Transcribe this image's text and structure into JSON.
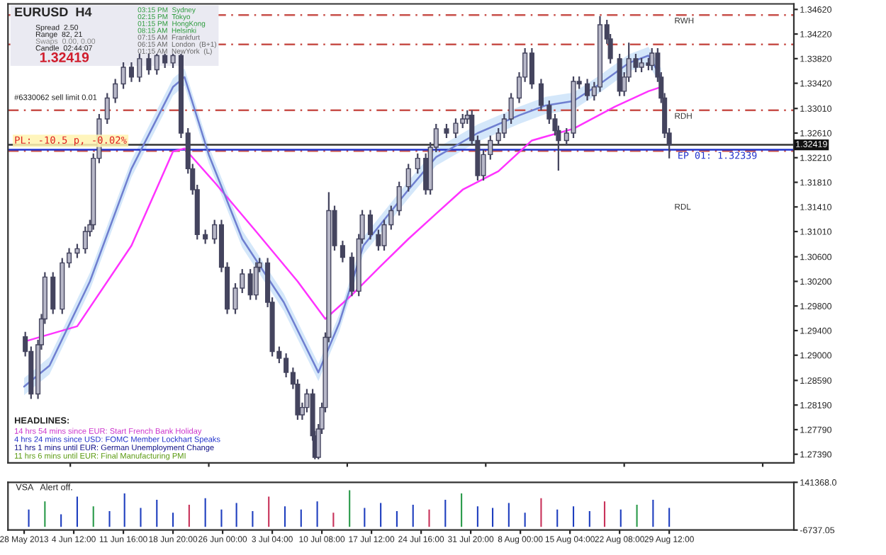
{
  "chart_data": [
    {
      "type": "candlestick",
      "title": "EURUSD  H4",
      "color": "#44445e",
      "x": [
        "2013-05-28T12:00",
        "2013-05-29T08:00",
        "2013-05-30T08:00",
        "2013-05-30T20:00",
        "2013-05-31T08:00",
        "2013-06-01T12:00",
        "2013-06-02T20:00",
        "2013-06-03T20:00",
        "2013-06-05T00:00",
        "2013-06-06T04:00",
        "2013-06-06T20:00",
        "2013-06-07T08:00",
        "2013-06-08T04:00",
        "2013-06-09T08:00",
        "2013-06-10T12:00",
        "2013-06-11T16:00",
        "2013-06-12T20:00",
        "2013-06-14T00:00",
        "2013-06-15T08:00",
        "2013-06-16T12:00",
        "2013-06-17T16:00",
        "2013-06-18T20:00",
        "2013-06-20T00:00",
        "2013-06-21T00:00",
        "2013-06-21T16:00",
        "2013-06-22T08:00",
        "2013-06-23T12:00",
        "2013-06-24T20:00",
        "2013-06-25T20:00",
        "2013-06-26T16:00",
        "2013-06-27T20:00",
        "2013-06-28T20:00",
        "2013-06-30T00:00",
        "2013-06-30T20:00",
        "2013-07-01T08:00",
        "2013-07-02T12:00",
        "2013-07-03T04:00",
        "2013-07-04T04:00",
        "2013-07-05T04:00",
        "2013-07-06T04:00",
        "2013-07-06T20:00",
        "2013-07-07T12:00",
        "2013-07-08T04:00",
        "2013-07-09T00:00",
        "2013-07-09T08:00",
        "2013-07-09T20:00",
        "2013-07-10T08:00",
        "2013-07-10T20:00",
        "2013-07-11T08:00",
        "2013-07-12T04:00",
        "2013-07-13T08:00",
        "2013-07-14T16:00",
        "2013-07-15T16:00",
        "2013-07-16T04:00",
        "2013-07-17T08:00",
        "2013-07-18T12:00",
        "2013-07-19T08:00",
        "2013-07-20T08:00",
        "2013-07-21T12:00",
        "2013-07-22T20:00",
        "2013-07-24T04:00",
        "2013-07-25T08:00",
        "2013-07-26T00:00",
        "2013-07-26T20:00",
        "2013-07-28T08:00",
        "2013-07-29T16:00",
        "2013-07-30T16:00",
        "2013-07-31T08:00",
        "2013-08-01T00:00",
        "2013-08-01T20:00",
        "2013-08-02T16:00",
        "2013-08-03T16:00",
        "2013-08-04T20:00",
        "2013-08-05T16:00",
        "2013-08-06T16:00",
        "2013-08-07T20:00",
        "2013-08-08T16:00",
        "2013-08-09T16:00",
        "2013-08-11T00:00",
        "2013-08-12T04:00",
        "2013-08-13T00:00",
        "2013-08-13T12:00",
        "2013-08-14T16:00",
        "2013-08-15T16:00",
        "2013-08-16T12:00",
        "2013-08-17T16:00",
        "2013-08-18T16:00",
        "2013-08-19T12:00",
        "2013-08-20T12:00",
        "2013-08-21T00:00",
        "2013-08-22T08:00",
        "2013-08-23T00:00",
        "2013-08-23T16:00",
        "2013-08-24T16:00",
        "2013-08-25T12:00",
        "2013-08-26T12:00",
        "2013-08-27T00:00",
        "2013-08-27T20:00",
        "2013-08-28T08:00",
        "2013-08-28T20:00",
        "2013-08-29T12:00"
      ],
      "ohlc": [
        [
          1.293,
          1.2938,
          1.2898,
          1.2906
        ],
        [
          1.2906,
          1.2914,
          1.2829,
          1.2837
        ],
        [
          1.2837,
          1.2925,
          1.2829,
          1.2917
        ],
        [
          1.2917,
          1.2967,
          1.2909,
          1.2959
        ],
        [
          1.2959,
          1.3035,
          1.2951,
          1.3027
        ],
        [
          1.3027,
          1.3035,
          1.2967,
          1.2975
        ],
        [
          1.2975,
          1.3058,
          1.2967,
          1.305
        ],
        [
          1.305,
          1.3074,
          1.3042,
          1.3066
        ],
        [
          1.3066,
          1.3081,
          1.3058,
          1.3073
        ],
        [
          1.3073,
          1.3109,
          1.3065,
          1.3101
        ],
        [
          1.3101,
          1.312,
          1.3093,
          1.3112
        ],
        [
          1.3112,
          1.3228,
          1.3104,
          1.322
        ],
        [
          1.322,
          1.3292,
          1.3212,
          1.3284
        ],
        [
          1.3284,
          1.3326,
          1.3276,
          1.3318
        ],
        [
          1.3318,
          1.3349,
          1.331,
          1.3341
        ],
        [
          1.3341,
          1.3376,
          1.3333,
          1.3368
        ],
        [
          1.3368,
          1.3376,
          1.3344,
          1.3352
        ],
        [
          1.3352,
          1.339,
          1.3344,
          1.3382
        ],
        [
          1.3382,
          1.339,
          1.3356,
          1.3364
        ],
        [
          1.3364,
          1.339,
          1.3356,
          1.3387
        ],
        [
          1.3387,
          1.339,
          1.3367,
          1.3375
        ],
        [
          1.3375,
          1.339,
          1.3367,
          1.3387
        ],
        [
          1.3387,
          1.339,
          1.3253,
          1.3261
        ],
        [
          1.3261,
          1.3269,
          1.3195,
          1.3203
        ],
        [
          1.3203,
          1.3211,
          1.3161,
          1.3169
        ],
        [
          1.3169,
          1.3177,
          1.3088,
          1.3096
        ],
        [
          1.3096,
          1.3104,
          1.3081,
          1.3089
        ],
        [
          1.3089,
          1.312,
          1.3081,
          1.3112
        ],
        [
          1.3112,
          1.312,
          1.3035,
          1.3043
        ],
        [
          1.3043,
          1.3051,
          1.2967,
          1.2975
        ],
        [
          1.2975,
          1.3017,
          1.2967,
          1.3009
        ],
        [
          1.3009,
          1.304,
          1.3001,
          1.3032
        ],
        [
          1.3032,
          1.304,
          1.299,
          1.2998
        ],
        [
          1.2998,
          1.3051,
          1.299,
          1.3043
        ],
        [
          1.3043,
          1.3058,
          1.3035,
          1.305
        ],
        [
          1.305,
          1.3058,
          1.2978,
          1.2986
        ],
        [
          1.2986,
          1.2994,
          1.2898,
          1.2906
        ],
        [
          1.2906,
          1.2914,
          1.2887,
          1.2895
        ],
        [
          1.2895,
          1.2903,
          1.2864,
          1.2872
        ],
        [
          1.2872,
          1.288,
          1.2845,
          1.2853
        ],
        [
          1.2853,
          1.2861,
          1.2795,
          1.2803
        ],
        [
          1.2803,
          1.2823,
          1.2795,
          1.2815
        ],
        [
          1.2815,
          1.2845,
          1.2807,
          1.2837
        ],
        [
          1.2837,
          1.2845,
          1.2761,
          1.2769
        ],
        [
          1.2769,
          1.2777,
          1.2731,
          1.2734
        ],
        [
          1.2734,
          1.2788,
          1.2731,
          1.278
        ],
        [
          1.278,
          1.2823,
          1.2772,
          1.2815
        ],
        [
          1.2815,
          1.2937,
          1.2807,
          1.2929
        ],
        [
          1.2929,
          1.3165,
          1.2921,
          1.3135
        ],
        [
          1.3135,
          1.3143,
          1.307,
          1.3078
        ],
        [
          1.3078,
          1.3086,
          1.3051,
          1.3059
        ],
        [
          1.3059,
          1.3067,
          1.2996,
          1.3004
        ],
        [
          1.3004,
          1.3097,
          1.2996,
          1.3089
        ],
        [
          1.3089,
          1.3136,
          1.3081,
          1.3128
        ],
        [
          1.3128,
          1.3136,
          1.3088,
          1.3096
        ],
        [
          1.3096,
          1.3104,
          1.307,
          1.3078
        ],
        [
          1.3078,
          1.312,
          1.307,
          1.3112
        ],
        [
          1.3112,
          1.3143,
          1.3104,
          1.3135
        ],
        [
          1.3135,
          1.3182,
          1.3127,
          1.3174
        ],
        [
          1.3174,
          1.3211,
          1.3166,
          1.3203
        ],
        [
          1.3203,
          1.3228,
          1.3195,
          1.322
        ],
        [
          1.322,
          1.3228,
          1.3161,
          1.3169
        ],
        [
          1.3169,
          1.3246,
          1.3161,
          1.3238
        ],
        [
          1.3238,
          1.3276,
          1.323,
          1.3268
        ],
        [
          1.3268,
          1.3276,
          1.3253,
          1.3261
        ],
        [
          1.3261,
          1.3285,
          1.3253,
          1.3277
        ],
        [
          1.3277,
          1.3292,
          1.3269,
          1.3284
        ],
        [
          1.3284,
          1.3298,
          1.3276,
          1.329
        ],
        [
          1.329,
          1.3298,
          1.3241,
          1.3249
        ],
        [
          1.3249,
          1.3257,
          1.3184,
          1.3192
        ],
        [
          1.3192,
          1.3234,
          1.3184,
          1.3226
        ],
        [
          1.3226,
          1.3257,
          1.3218,
          1.3249
        ],
        [
          1.3249,
          1.3269,
          1.3241,
          1.3261
        ],
        [
          1.3261,
          1.3292,
          1.3253,
          1.3284
        ],
        [
          1.3284,
          1.3326,
          1.3276,
          1.3318
        ],
        [
          1.3318,
          1.336,
          1.331,
          1.3352
        ],
        [
          1.3352,
          1.3399,
          1.3344,
          1.3391
        ],
        [
          1.3391,
          1.3399,
          1.3333,
          1.3341
        ],
        [
          1.3341,
          1.3349,
          1.3298,
          1.3306
        ],
        [
          1.3306,
          1.3314,
          1.3276,
          1.3284
        ],
        [
          1.3284,
          1.3292,
          1.3257,
          1.3265
        ],
        [
          1.3265,
          1.3273,
          1.32,
          1.3249
        ],
        [
          1.3249,
          1.3269,
          1.3241,
          1.3261
        ],
        [
          1.3261,
          1.3353,
          1.3253,
          1.3345
        ],
        [
          1.3345,
          1.3353,
          1.3333,
          1.3341
        ],
        [
          1.3341,
          1.3349,
          1.3314,
          1.3322
        ],
        [
          1.3322,
          1.3344,
          1.3314,
          1.3336
        ],
        [
          1.3336,
          1.3451,
          1.3328,
          1.3437
        ],
        [
          1.3437,
          1.3445,
          1.3406,
          1.3414
        ],
        [
          1.3414,
          1.3422,
          1.3374,
          1.3382
        ],
        [
          1.3382,
          1.339,
          1.3321,
          1.3329
        ],
        [
          1.3329,
          1.336,
          1.3321,
          1.3352
        ],
        [
          1.3352,
          1.3408,
          1.3344,
          1.3382
        ],
        [
          1.3382,
          1.339,
          1.336,
          1.3368
        ],
        [
          1.3368,
          1.3383,
          1.336,
          1.3375
        ],
        [
          1.3375,
          1.3383,
          1.3363,
          1.3371
        ],
        [
          1.3371,
          1.3399,
          1.3363,
          1.3391
        ],
        [
          1.3391,
          1.3399,
          1.3344,
          1.3352
        ],
        [
          1.3352,
          1.336,
          1.331,
          1.3318
        ],
        [
          1.3318,
          1.3326,
          1.3253,
          1.3261
        ],
        [
          1.3261,
          1.3269,
          1.322,
          1.3242
        ]
      ],
      "series": [
        {
          "type": "line",
          "color": "#ff33ff",
          "x": [
            "2013-05-28T08:00",
            "2013-06-05T00:00",
            "2013-06-12T20:00",
            "2013-06-18T20:00",
            "2013-06-20T12:00",
            "2013-06-24T20:00",
            "2013-06-30T20:00",
            "2013-07-06T20:00",
            "2013-07-10T20:00",
            "2013-07-14T16:00",
            "2013-07-18T16:00",
            "2013-07-22T20:00",
            "2013-07-26T20:00",
            "2013-07-30T16:00",
            "2013-08-04T20:00",
            "2013-08-09T16:00",
            "2013-08-15T16:00",
            "2013-08-21T16:00",
            "2013-08-26T12:00",
            "2013-08-28T08:00"
          ],
          "values": [
            1.2922,
            1.2947,
            1.3078,
            1.3231,
            1.3236,
            1.3181,
            1.3101,
            1.302,
            1.2959,
            1.2998,
            1.3043,
            1.3089,
            1.313,
            1.3169,
            1.3199,
            1.3249,
            1.3268,
            1.3304,
            1.3329,
            1.3336
          ]
        },
        {
          "type": "line",
          "color": "#6f7fd0",
          "x": [
            "2013-05-28T08:00",
            "2013-06-01T00:00",
            "2013-06-06T20:00",
            "2013-06-12T20:00",
            "2013-06-18T20:00",
            "2013-06-20T12:00",
            "2013-06-24T00:00",
            "2013-06-28T20:00",
            "2013-07-04T20:00",
            "2013-07-09T20:00",
            "2013-07-12T20:00",
            "2013-07-16T08:00",
            "2013-07-22T20:00",
            "2013-07-26T20:00",
            "2013-08-01T20:00",
            "2013-08-07T20:00",
            "2013-08-11T16:00",
            "2013-08-15T16:00",
            "2013-08-19T12:00",
            "2013-08-23T16:00",
            "2013-08-26T12:00",
            "2013-08-28T08:00"
          ],
          "values": [
            1.2849,
            1.2883,
            1.302,
            1.3203,
            1.3336,
            1.3352,
            1.3226,
            1.3089,
            1.2986,
            1.2872,
            1.2952,
            1.3078,
            1.3169,
            1.3222,
            1.3261,
            1.329,
            1.3306,
            1.3313,
            1.3341,
            1.3375,
            1.3387,
            1.3352
          ],
          "lower": [
            1.2835,
            1.2869,
            1.3006,
            1.3189,
            1.3322,
            1.3338,
            1.3212,
            1.3075,
            1.2972,
            1.2858,
            1.2938,
            1.3064,
            1.3155,
            1.3208,
            1.3247,
            1.3276,
            1.3292,
            1.3299,
            1.3327,
            1.3361,
            1.3373,
            1.3338
          ],
          "upper": [
            1.2863,
            1.2897,
            1.3034,
            1.3217,
            1.335,
            1.3366,
            1.324,
            1.3103,
            1.3,
            1.2886,
            1.2966,
            1.3092,
            1.3183,
            1.3236,
            1.3275,
            1.3304,
            1.332,
            1.3327,
            1.3355,
            1.3389,
            1.3401,
            1.3366
          ]
        }
      ],
      "xlim": [
        "2013-05-26T00:00",
        "2013-09-16T12:00"
      ],
      "ylim": [
        1.2725,
        1.3471
      ],
      "yticks": [
        {
          "value": 1.3462,
          "label": "1.34620"
        },
        {
          "value": 1.3422,
          "label": "1.34220"
        },
        {
          "value": 1.3382,
          "label": "1.33820"
        },
        {
          "value": 1.3342,
          "label": "1.33420"
        },
        {
          "value": 1.3301,
          "label": "1.33010"
        },
        {
          "value": 1.3261,
          "label": "1.32610"
        },
        {
          "value": 1.3221,
          "label": "1.32210"
        },
        {
          "value": 1.3181,
          "label": "1.31810"
        },
        {
          "value": 1.3141,
          "label": "1.31410"
        },
        {
          "value": 1.3101,
          "label": "1.31010"
        },
        {
          "value": 1.306,
          "label": "1.30600"
        },
        {
          "value": 1.302,
          "label": "1.30200"
        },
        {
          "value": 1.298,
          "label": "1.29800"
        },
        {
          "value": 1.294,
          "label": "1.29400"
        },
        {
          "value": 1.29,
          "label": "1.29000"
        },
        {
          "value": 1.2859,
          "label": "1.28590"
        },
        {
          "value": 1.2819,
          "label": "1.28190"
        },
        {
          "value": 1.2779,
          "label": "1.27790"
        },
        {
          "value": 1.2739,
          "label": "1.27390"
        }
      ],
      "tick_labels": "y",
      "ref_lines": [
        {
          "axis": "y",
          "value": 1.3453,
          "label": "RWH",
          "color": "#c8504a",
          "line_style": "dashed"
        },
        {
          "axis": "y",
          "value": 1.3405,
          "label": null,
          "color": "#c8504a",
          "line_style": "dashed"
        },
        {
          "axis": "y",
          "value": 1.3298,
          "label": "RDH",
          "color": "#c8504a",
          "line_style": "dashed"
        },
        {
          "axis": "y",
          "value": 1.3232,
          "label": null,
          "color": "#c8504a",
          "line_style": "dashed"
        },
        {
          "axis": "y",
          "value": 1.32339,
          "label": "EP 01: 1.32339",
          "color": "#2233cc",
          "line_style": "solid"
        },
        {
          "axis": "y",
          "value": 1.32419,
          "label": "1.32419",
          "color": "#333333",
          "line_style": "solid"
        }
      ],
      "annotations": [
        "Spread  2.50",
        "Range  82, 21",
        "Swaps  0.00, 0.00",
        "Candle  02:44:07",
        "1.32419",
        "03:15 PM  Sydney",
        "02:15 PM  Tokyo",
        "01:15 PM  HongKong",
        "08:15 AM  Helsinki",
        "07:15 AM  Frankfurt",
        "06:15 AM  London  (B+1)",
        "01:15 AM  NewYork  (L)",
        "#6330062 sell limit 0.01",
        "PL: -10.5 p, -0.02%",
        "HEADLINES:",
        "14 hrs 54 mins since EUR: Start French Bank Holiday",
        "4 hrs 24 mins since USD: FOMC Member Lockhart Speaks",
        "11 hrs 1 mins until EUR: German Unemployment Change",
        "11 hrs 6 mins until EUR: Final Manufacturing PMI",
        "RDL"
      ]
    },
    {
      "type": "bar",
      "x": [
        "2013-05-29T00:00",
        "2013-05-31T08:00",
        "2013-06-02T16:00",
        "2013-06-05T00:00",
        "2013-06-07T08:00",
        "2013-06-09T16:00",
        "2013-06-11T20:00",
        "2013-06-14T04:00",
        "2013-06-16T12:00",
        "2013-06-18T20:00",
        "2013-06-21T04:00",
        "2013-06-23T12:00",
        "2013-06-25T20:00",
        "2013-06-28T00:00",
        "2013-06-30T08:00",
        "2013-07-02T16:00",
        "2013-07-05T00:00",
        "2013-07-07T08:00",
        "2013-07-09T16:00",
        "2013-07-12T00:00",
        "2013-07-14T08:00",
        "2013-07-16T12:00",
        "2013-07-18T20:00",
        "2013-07-21T04:00",
        "2013-07-23T12:00",
        "2013-07-25T20:00",
        "2013-07-28T04:00",
        "2013-07-30T12:00",
        "2013-08-01T20:00",
        "2013-08-04T00:00",
        "2013-08-06T08:00",
        "2013-08-08T16:00",
        "2013-08-11T00:00",
        "2013-08-13T08:00",
        "2013-08-15T16:00",
        "2013-08-18T00:00",
        "2013-08-20T04:00",
        "2013-08-22T12:00",
        "2013-08-24T20:00",
        "2013-08-27T04:00",
        "2013-08-29T12:00"
      ],
      "values": [
        60000,
        85000,
        45000,
        100000,
        70000,
        55000,
        110000,
        65000,
        90000,
        50000,
        75000,
        95000,
        60000,
        80000,
        55000,
        100000,
        70000,
        60000,
        85000,
        50000,
        120000,
        65000,
        80000,
        55000,
        75000,
        60000,
        90000,
        110000,
        70000,
        65000,
        80000,
        50000,
        95000,
        60000,
        70000,
        55000,
        85000,
        60000,
        75000,
        90000,
        65000
      ],
      "colors": [
        "#1f3fbf",
        "#2a9a4a",
        "#1f3fbf",
        "#1f3fbf",
        "#2a9a4a",
        "#1f3fbf",
        "#1f3fbf",
        "#1f3fbf",
        "#1f3fbf",
        "#1f3fbf",
        "#c8325a",
        "#1f3fbf",
        "#1f3fbf",
        "#1f3fbf",
        "#1f3fbf",
        "#c8325a",
        "#1f3fbf",
        "#1f3fbf",
        "#1f3fbf",
        "#c8325a",
        "#2a9a4a",
        "#1f3fbf",
        "#1f3fbf",
        "#1f3fbf",
        "#1f3fbf",
        "#c8325a",
        "#1f3fbf",
        "#2a9a4a",
        "#1f3fbf",
        "#1f3fbf",
        "#1f3fbf",
        "#1f3fbf",
        "#c8325a",
        "#1f3fbf",
        "#1f3fbf",
        "#1f3fbf",
        "#c8325a",
        "#1f3fbf",
        "#2a9a4a",
        "#1f3fbf",
        "#1f3fbf"
      ],
      "xlim": [
        "2013-05-26T00:00",
        "2013-09-16T12:00"
      ],
      "ylim": [
        -6737.05,
        141368.0
      ],
      "yticks": [
        {
          "value": 141368.0,
          "label": "141368.0"
        },
        {
          "value": -6737.05,
          "label": "-6737.05"
        }
      ],
      "xticks": [
        {
          "value": "2013-05-28T08:00",
          "label": "28 May 2013"
        },
        {
          "value": "2013-06-04T12:00",
          "label": "4 Jun 12:00"
        },
        {
          "value": "2013-06-11T16:00",
          "label": "11 Jun 16:00"
        },
        {
          "value": "2013-06-18T20:00",
          "label": "18 Jun 20:00"
        },
        {
          "value": "2013-06-26T00:00",
          "label": "26 Jun 00:00"
        },
        {
          "value": "2013-07-03T04:00",
          "label": "3 Jul 04:00"
        },
        {
          "value": "2013-07-10T08:00",
          "label": "10 Jul 08:00"
        },
        {
          "value": "2013-07-17T12:00",
          "label": "17 Jul 12:00"
        },
        {
          "value": "2013-07-24T16:00",
          "label": "24 Jul 16:00"
        },
        {
          "value": "2013-07-31T20:00",
          "label": "31 Jul 20:00"
        },
        {
          "value": "2013-08-08T00:00",
          "label": "8 Aug 00:00"
        },
        {
          "value": "2013-08-15T04:00",
          "label": "15 Aug 04:00"
        },
        {
          "value": "2013-08-22T08:00",
          "label": "22 Aug 08:00"
        },
        {
          "value": "2013-08-29T12:00",
          "label": "29 Aug 12:00"
        }
      ],
      "annotations": [
        "VSA   Alert off."
      ]
    }
  ]
}
